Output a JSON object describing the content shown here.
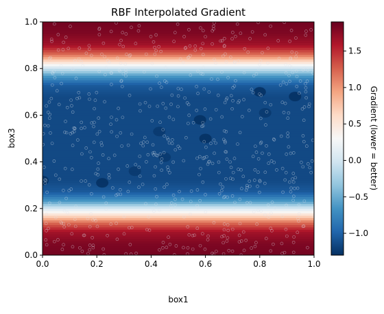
{
  "chart_data": {
    "type": "heatmap",
    "title": "RBF Interpolated Gradient",
    "xlabel": "box1",
    "ylabel": "box3",
    "xlim": [
      0.0,
      1.0
    ],
    "ylim": [
      0.0,
      1.0
    ],
    "x_ticks": [
      "0.0",
      "0.2",
      "0.4",
      "0.6",
      "0.8",
      "1.0"
    ],
    "y_ticks": [
      "0.0",
      "0.2",
      "0.4",
      "0.6",
      "0.8",
      "1.0"
    ],
    "colormap": "RdBu_r",
    "colorbar": {
      "label": "Gradient (lower = better)",
      "min": -1.3,
      "max": 1.9,
      "ticks": [
        "1.5",
        "1.0",
        "0.5",
        "0.0",
        "−0.5",
        "−1.0"
      ]
    },
    "gradient_profile_by_box3": [
      [
        0.0,
        1.85
      ],
      [
        0.05,
        1.8
      ],
      [
        0.1,
        1.65
      ],
      [
        0.14,
        1.2
      ],
      [
        0.17,
        0.6
      ],
      [
        0.2,
        0.05
      ],
      [
        0.23,
        -0.6
      ],
      [
        0.27,
        -1.05
      ],
      [
        0.32,
        -1.15
      ],
      [
        0.5,
        -1.15
      ],
      [
        0.68,
        -1.15
      ],
      [
        0.73,
        -1.05
      ],
      [
        0.77,
        -0.6
      ],
      [
        0.8,
        -0.05
      ],
      [
        0.83,
        0.6
      ],
      [
        0.86,
        1.2
      ],
      [
        0.9,
        1.65
      ],
      [
        0.95,
        1.8
      ],
      [
        1.0,
        1.85
      ]
    ],
    "local_minima": [
      {
        "x": 0.0,
        "y": 0.32,
        "value": -1.3
      },
      {
        "x": 0.22,
        "y": 0.31,
        "value": -1.3
      },
      {
        "x": 0.34,
        "y": 0.36,
        "value": -1.25
      },
      {
        "x": 0.45,
        "y": 0.42,
        "value": -1.25
      },
      {
        "x": 0.43,
        "y": 0.53,
        "value": -1.25
      },
      {
        "x": 0.58,
        "y": 0.58,
        "value": -1.3
      },
      {
        "x": 0.6,
        "y": 0.5,
        "value": -1.3
      },
      {
        "x": 0.8,
        "y": 0.7,
        "value": -1.3
      },
      {
        "x": 0.82,
        "y": 0.61,
        "value": -1.25
      },
      {
        "x": 0.93,
        "y": 0.68,
        "value": -1.3
      }
    ],
    "sample_points": "hollow circle markers at scattered sampled (box1, box3) locations across the whole domain"
  }
}
